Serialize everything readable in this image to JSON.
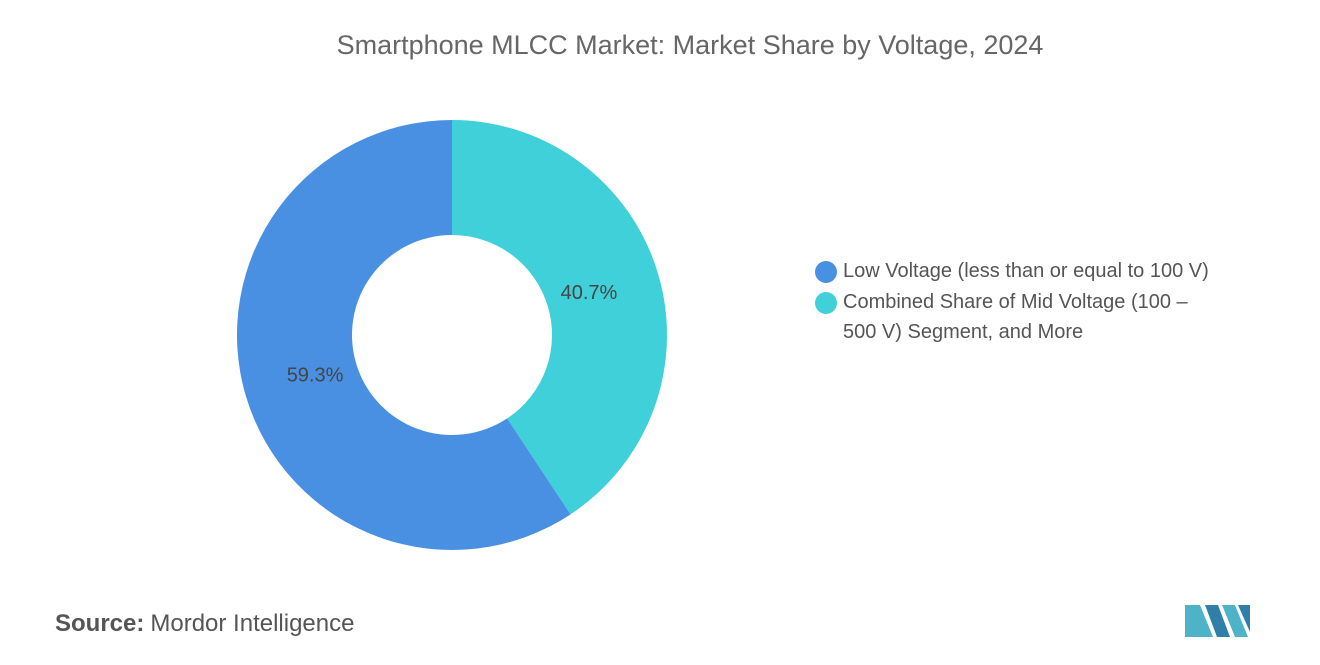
{
  "chart_data": {
    "type": "pie",
    "donut": true,
    "title": "Smartphone MLCC Market: Market Share by Voltage, 2024",
    "categories": [
      "Low Voltage (less than or equal to 100 V)",
      "Combined Share of Mid Voltage (100 – 500 V) Segment, and More"
    ],
    "values": [
      59.3,
      40.7
    ],
    "value_labels": [
      "59.3%",
      "40.7%"
    ],
    "colors": [
      "#4a90e2",
      "#40d0da"
    ]
  },
  "source": {
    "label": "Source:",
    "text": "Mordor Intelligence"
  }
}
